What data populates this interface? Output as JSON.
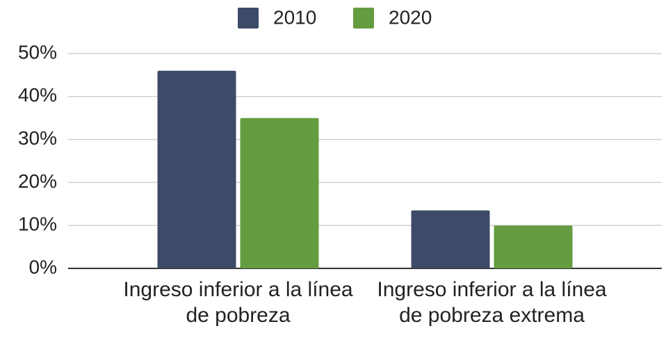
{
  "chart_data": {
    "type": "bar",
    "categories": [
      "Ingreso inferior a la línea de pobreza",
      "Ingreso inferior a la línea de pobreza extrema"
    ],
    "series": [
      {
        "name": "2010",
        "color": "#3d4a68",
        "values": [
          46,
          13.5
        ]
      },
      {
        "name": "2020",
        "color": "#659c41",
        "values": [
          35,
          10
        ]
      }
    ],
    "ylim": [
      0,
      50
    ],
    "yticks": [
      {
        "value": 0,
        "label": "0%"
      },
      {
        "value": 10,
        "label": "10%"
      },
      {
        "value": 20,
        "label": "20%"
      },
      {
        "value": 30,
        "label": "30%"
      },
      {
        "value": 40,
        "label": "40%"
      },
      {
        "value": 50,
        "label": "50%"
      }
    ],
    "grid": true,
    "legend": "top"
  }
}
